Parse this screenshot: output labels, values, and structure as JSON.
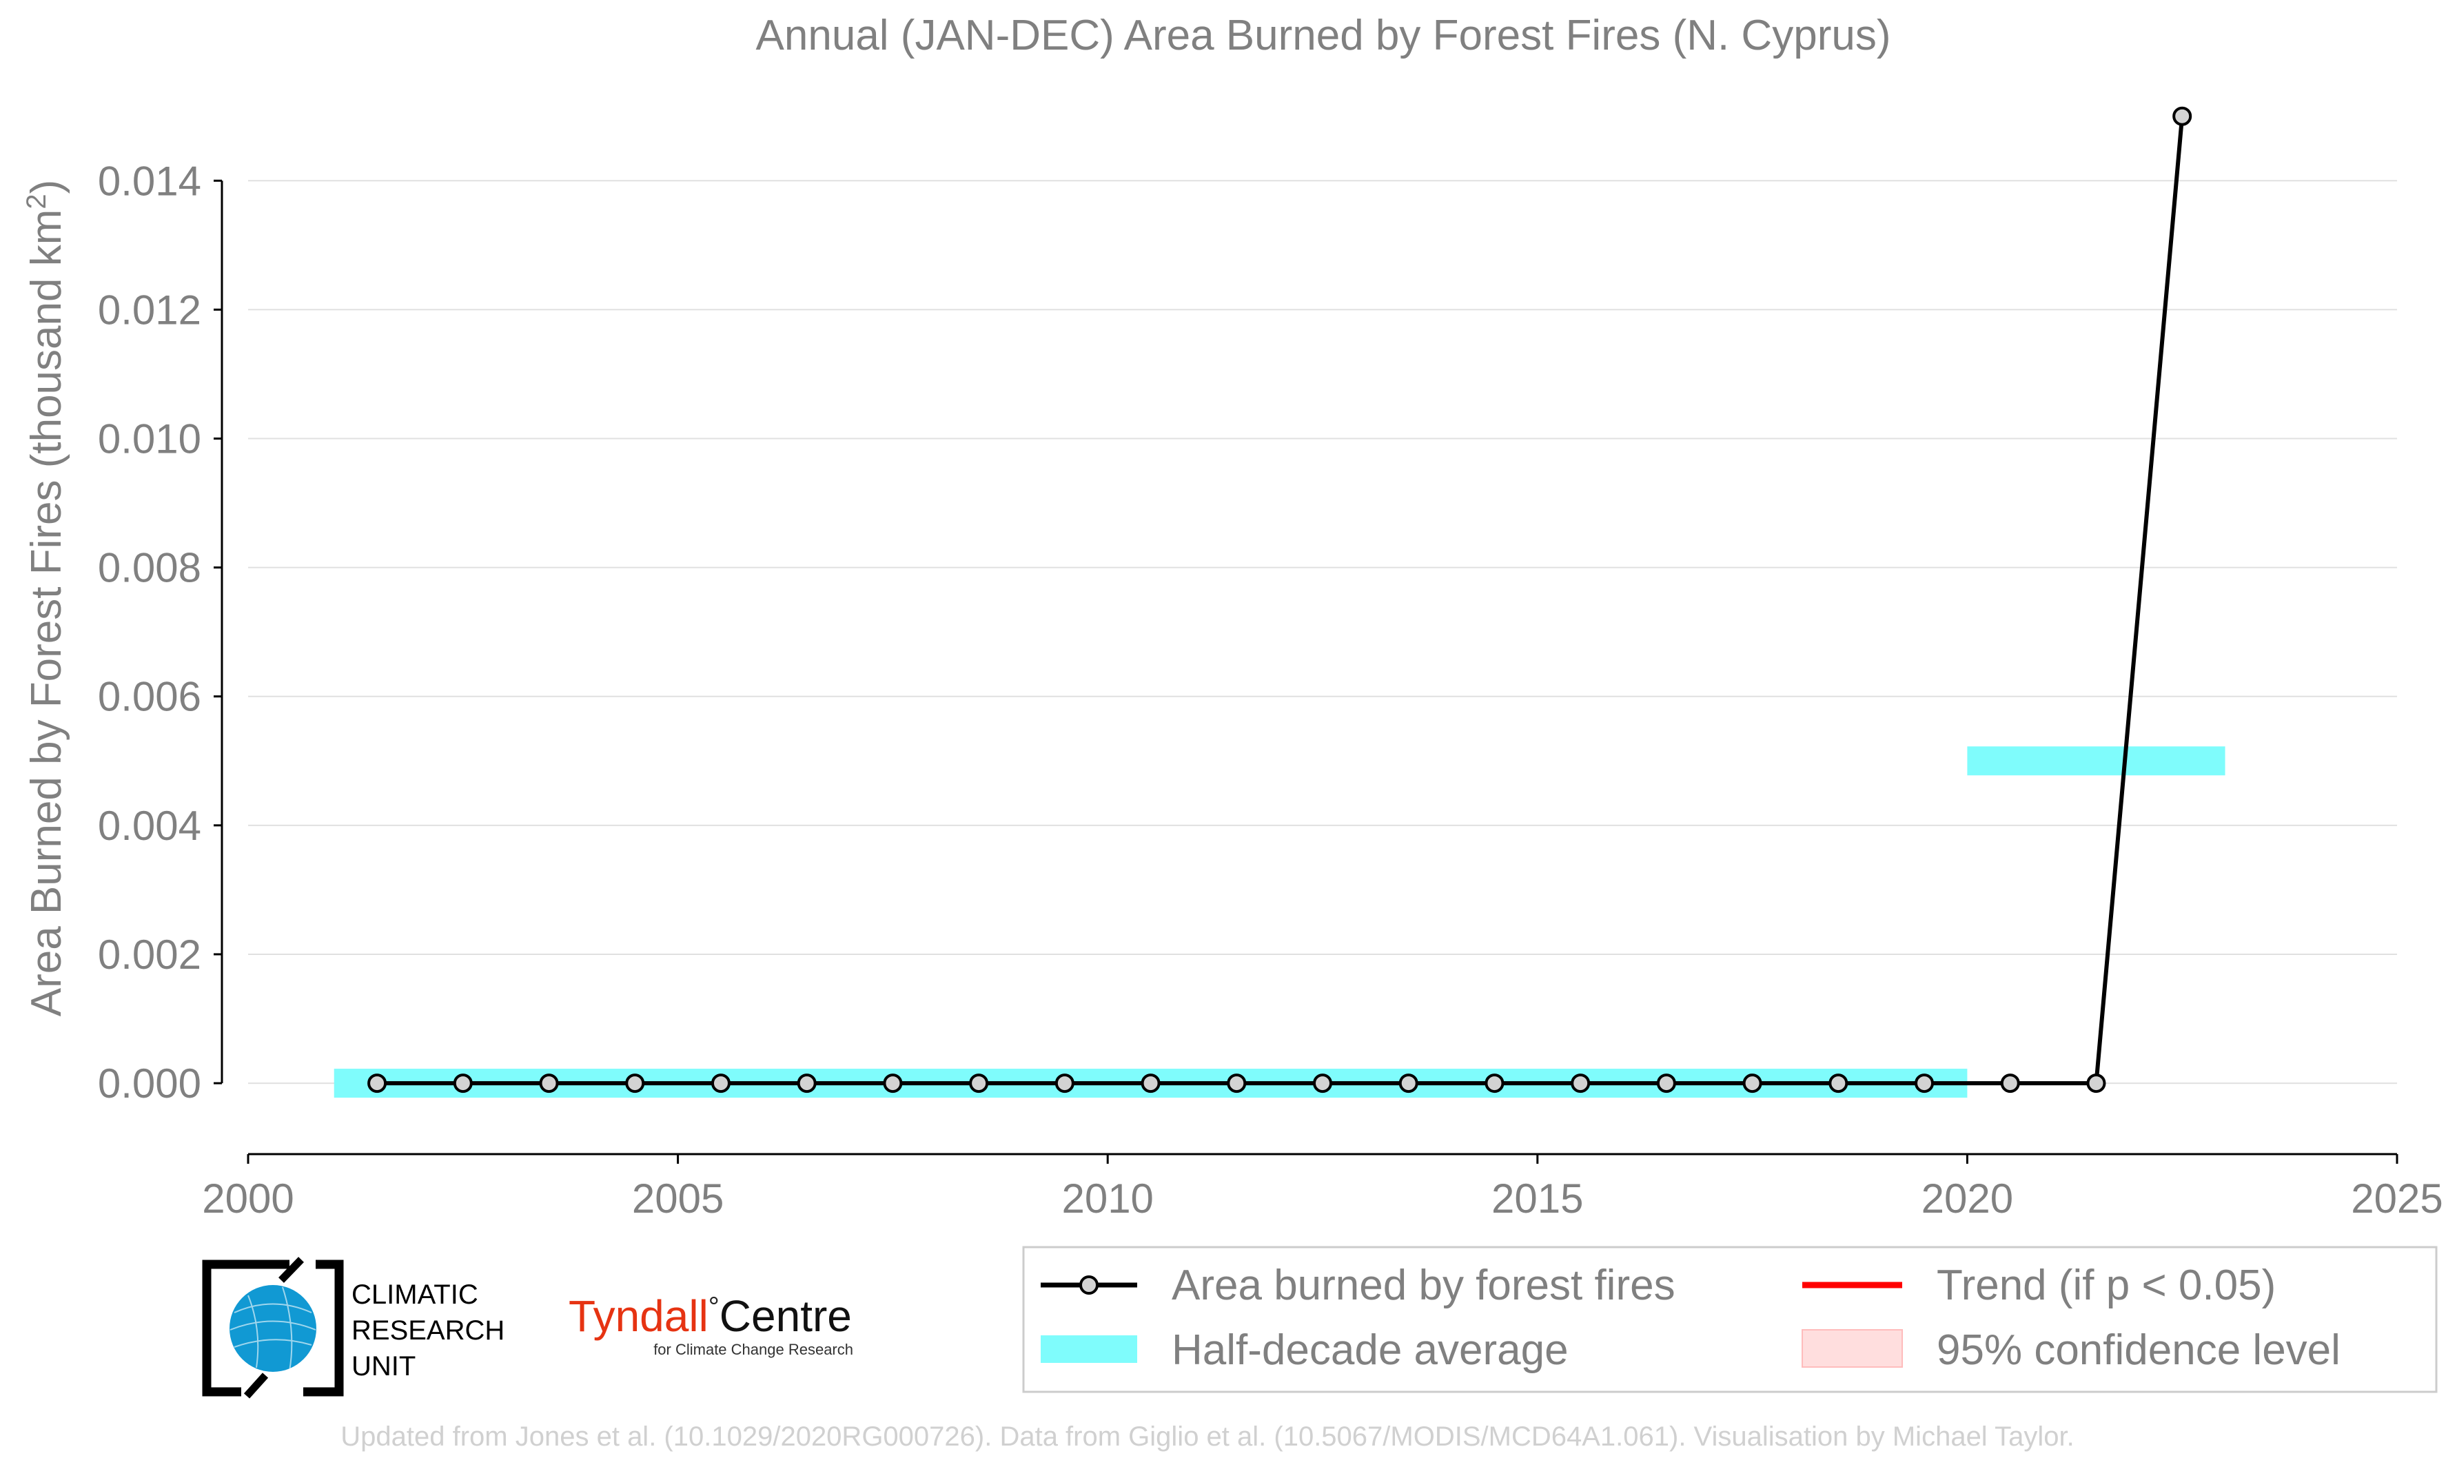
{
  "colors": {
    "line": "#000000",
    "marker_fill": "#d3d3d3",
    "half_decade": "#7ffcfc",
    "trend": "#ff0000",
    "confidence": "#ffdede",
    "grid": "#e0e0e0",
    "text": "#808080",
    "tyndall_red": "#e63312"
  },
  "chart_data": {
    "type": "line",
    "title": "Annual (JAN-DEC) Area Burned by Forest Fires (N. Cyprus)",
    "xlabel": "",
    "ylabel_prefix": "Area Burned by Forest Fires (thousand km",
    "ylabel_sup": "2",
    "ylabel_suffix": ")",
    "xlim": [
      2000,
      2025
    ],
    "ylim": [
      -0.0011,
      0.0152
    ],
    "x_ticks": [
      2000,
      2005,
      2010,
      2015,
      2020,
      2025
    ],
    "y_ticks": [
      "0.000",
      "0.002",
      "0.004",
      "0.006",
      "0.008",
      "0.010",
      "0.012",
      "0.014"
    ],
    "grid": "horizontal",
    "series": [
      {
        "name": "Area burned by forest fires",
        "x": [
          2001.5,
          2002.5,
          2003.5,
          2004.5,
          2005.5,
          2006.5,
          2007.5,
          2008.5,
          2009.5,
          2010.5,
          2011.5,
          2012.5,
          2013.5,
          2014.5,
          2015.5,
          2016.5,
          2017.5,
          2018.5,
          2019.5,
          2020.5,
          2021.5,
          2022.5
        ],
        "values": [
          0,
          0,
          0,
          0,
          0,
          0,
          0,
          0,
          0,
          0,
          0,
          0,
          0,
          0,
          0,
          0,
          0,
          0,
          0,
          0,
          0,
          0.015
        ]
      }
    ],
    "half_decade_average": [
      {
        "x_start": 2001,
        "x_end": 2020,
        "value": 0
      },
      {
        "x_start": 2020,
        "x_end": 2023,
        "value": 0.005
      }
    ],
    "legend": {
      "placement": "bottom-right",
      "items": [
        {
          "label": "Area burned by forest fires",
          "kind": "line-marker"
        },
        {
          "label": "Trend (if p < 0.05)",
          "kind": "trend-line"
        },
        {
          "label": "Half-decade average",
          "kind": "half-decade-bar"
        },
        {
          "label": "95% confidence level",
          "kind": "confidence-patch"
        }
      ]
    }
  },
  "logos": {
    "cru_lines": [
      "CLIMATIC",
      "RESEARCH",
      "UNIT"
    ],
    "tyndall_red": "Tyndall",
    "tyndall_degree": "°",
    "tyndall_black": "Centre",
    "tyndall_sub": "for Climate Change Research"
  },
  "footer": "Updated from Jones et al. (10.1029/2020RG000726). Data from Giglio et al. (10.5067/MODIS/MCD64A1.061). Visualisation by Michael Taylor."
}
